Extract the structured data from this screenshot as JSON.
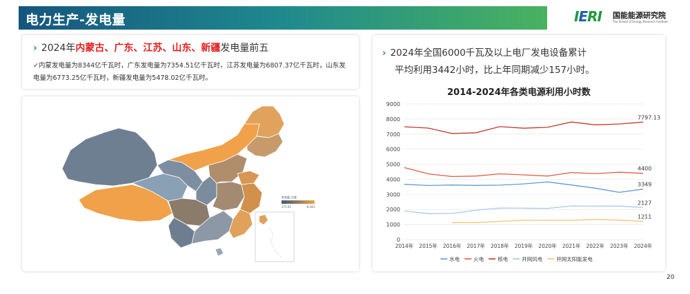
{
  "header": {
    "title": "电力生产-发电量"
  },
  "logo": {
    "mark_i": "I",
    "mark_e": "E",
    "mark_ri": "RI",
    "name_cn": "国能能源研究院",
    "name_en": "The School of Energy Research Institute"
  },
  "left_top": {
    "heading_prefix": "2024年",
    "heading_provinces": [
      "内蒙古",
      "广东",
      "江苏",
      "山东",
      "新疆"
    ],
    "heading_separator": "、",
    "heading_suffix": "发电量前五",
    "body": "✓内蒙发电量为8344亿千瓦时，广东发电量为7354.51亿千瓦时，江苏发电量为6807.37亿千瓦时，山东发电量为6773.25亿千瓦时，新疆发电量为5478.02亿千瓦时。"
  },
  "map": {
    "legend_title": "发电量_亿度",
    "legend_min": "171.61",
    "legend_max": "8,344",
    "color_low": "#3c5a78",
    "color_high": "#f0a14a"
  },
  "right": {
    "heading_line1": "2024年全国6000千瓦及以上电厂发电设备累计",
    "heading_line2": "平均利用3442小时，比上年同期减少157小时。"
  },
  "chart_data": {
    "type": "line",
    "title": "2014-2024年各类电源利用小时数",
    "categories": [
      "2014年",
      "2015年",
      "2016年",
      "2017年",
      "2018年",
      "2019年",
      "2020年",
      "2021年",
      "2022年",
      "2023年",
      "2024年"
    ],
    "ylim": [
      0,
      9000
    ],
    "yticks": [
      0,
      1000,
      2000,
      3000,
      4000,
      5000,
      6000,
      7000,
      8000,
      9000
    ],
    "grid": true,
    "legend_position": "bottom",
    "series": [
      {
        "name": "水电",
        "color": "#5b9bd5",
        "values": [
          3669,
          3590,
          3621,
          3597,
          3613,
          3697,
          3827,
          3622,
          3412,
          3133,
          3349
        ],
        "end_label": "3349"
      },
      {
        "name": "火电",
        "color": "#e15a44",
        "values": [
          4778,
          4364,
          4186,
          4219,
          4361,
          4293,
          4216,
          4448,
          4379,
          4466,
          4400
        ],
        "end_label": "4400"
      },
      {
        "name": "核电",
        "color": "#c0392b",
        "values": [
          7489,
          7403,
          7042,
          7089,
          7499,
          7394,
          7453,
          7802,
          7616,
          7670,
          7797.13
        ],
        "end_label": "7797.13"
      },
      {
        "name": "并网风电",
        "color": "#a9c8ea",
        "values": [
          1900,
          1724,
          1742,
          1948,
          2095,
          2082,
          2073,
          2232,
          2221,
          2225,
          2127
        ],
        "end_label": "2127"
      },
      {
        "name": "并网太阳能发电",
        "color": "#f2c36b",
        "values": [
          null,
          null,
          1125,
          1133,
          1212,
          1285,
          1281,
          1281,
          1337,
          1292,
          1211
        ],
        "end_label": "1211"
      }
    ]
  },
  "page_number": "20"
}
